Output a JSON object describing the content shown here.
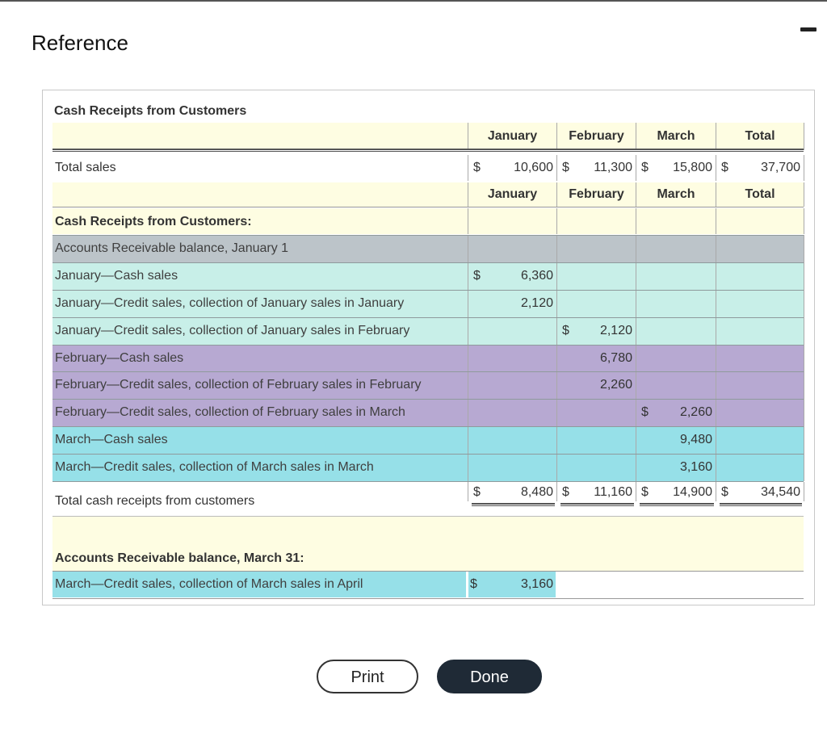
{
  "page": {
    "title": "Reference"
  },
  "window": {
    "minimize_icon": "minimize-icon"
  },
  "table": {
    "title": "Cash Receipts from Customers",
    "header": [
      "January",
      "February",
      "March",
      "Total"
    ],
    "sales_row": {
      "label": "Total sales",
      "cur": [
        "$",
        "$",
        "$",
        "$"
      ],
      "values": [
        "10,600",
        "11,300",
        "15,800",
        "37,700"
      ]
    },
    "header2": [
      "January",
      "February",
      "March",
      "Total"
    ],
    "receipts_heading": "Cash Receipts from Customers:",
    "rows": [
      {
        "label": "Accounts Receivable balance, January 1",
        "cur": [
          "",
          "",
          "",
          ""
        ],
        "values": [
          "",
          "",
          "",
          ""
        ]
      },
      {
        "label": "January—Cash sales",
        "cur": [
          "$",
          "",
          "",
          ""
        ],
        "values": [
          "6,360",
          "",
          "",
          ""
        ]
      },
      {
        "label": "January—Credit sales, collection of January sales in January",
        "cur": [
          "",
          "",
          "",
          ""
        ],
        "values": [
          "2,120",
          "",
          "",
          ""
        ]
      },
      {
        "label": "January—Credit sales, collection of January sales in February",
        "cur": [
          "",
          "$",
          "",
          ""
        ],
        "values": [
          "",
          "2,120",
          "",
          ""
        ]
      },
      {
        "label": "February—Cash sales",
        "cur": [
          "",
          "",
          "",
          ""
        ],
        "values": [
          "",
          "6,780",
          "",
          ""
        ]
      },
      {
        "label": "February—Credit sales, collection of February sales in February",
        "cur": [
          "",
          "",
          "",
          ""
        ],
        "values": [
          "",
          "2,260",
          "",
          ""
        ]
      },
      {
        "label": "February—Credit sales, collection of February sales in March",
        "cur": [
          "",
          "",
          "$",
          ""
        ],
        "values": [
          "",
          "",
          "2,260",
          ""
        ]
      },
      {
        "label": "March—Cash sales",
        "cur": [
          "",
          "",
          "",
          ""
        ],
        "values": [
          "",
          "",
          "9,480",
          ""
        ]
      },
      {
        "label": "March—Credit sales, collection of March sales in March",
        "cur": [
          "",
          "",
          "",
          ""
        ],
        "values": [
          "",
          "",
          "3,160",
          ""
        ]
      }
    ],
    "total_row": {
      "label": "Total cash receipts from customers",
      "cur": [
        "$",
        "$",
        "$",
        "$"
      ],
      "values": [
        "8,480",
        "11,160",
        "14,900",
        "34,540"
      ]
    },
    "ar_heading": "Accounts Receivable balance, March 31:",
    "ar_row": {
      "label": "March—Credit sales, collection of March sales in April",
      "cur": "$",
      "value": "3,160"
    }
  },
  "buttons": {
    "print": "Print",
    "done": "Done"
  },
  "colors": {
    "header_band": "#fefde2",
    "ar_band": "#bcc4c9",
    "january_band": "#c8efe8",
    "february_band": "#b7a9d2",
    "march_band": "#96e0e8",
    "done_button": "#1f2a36"
  }
}
